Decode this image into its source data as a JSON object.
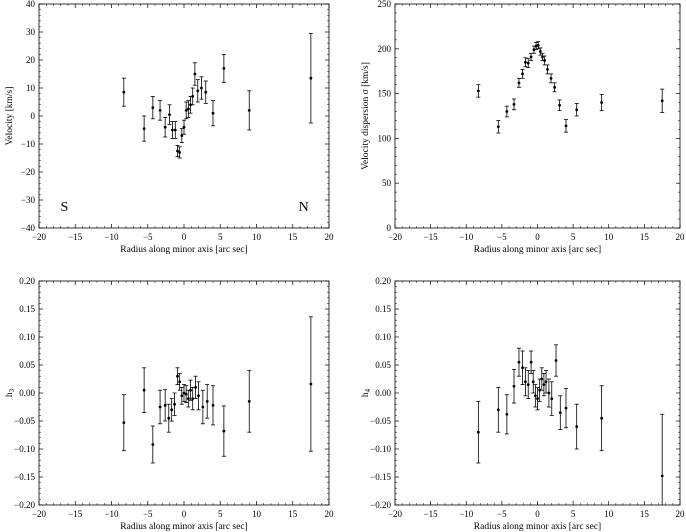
{
  "chart_data": [
    {
      "type": "scatter",
      "title": "",
      "xlabel": "Radius along minor axis [arc sec]",
      "ylabel": "Velocity [km/s]",
      "xlim": [
        -20,
        20
      ],
      "ylim": [
        -40,
        40
      ],
      "xticks": [
        -20,
        -15,
        -10,
        -5,
        0,
        5,
        10,
        15,
        20
      ],
      "yticks": [
        -40,
        -30,
        -20,
        -10,
        0,
        10,
        20,
        30,
        40
      ],
      "error_bars": true,
      "annotations": [
        "S",
        "N"
      ],
      "points": [
        {
          "x": -8.3,
          "y": 8.5,
          "err": 5
        },
        {
          "x": -5.5,
          "y": -4.5,
          "err": 4.5
        },
        {
          "x": -4.3,
          "y": 3,
          "err": 4
        },
        {
          "x": -3.3,
          "y": 2,
          "err": 3.5
        },
        {
          "x": -2.6,
          "y": -4,
          "err": 3.5
        },
        {
          "x": -2.0,
          "y": 0.5,
          "err": 3.5
        },
        {
          "x": -1.6,
          "y": -5,
          "err": 3
        },
        {
          "x": -1.2,
          "y": -5,
          "err": 3
        },
        {
          "x": -0.9,
          "y": -12.5,
          "err": 2
        },
        {
          "x": -0.6,
          "y": -13,
          "err": 2
        },
        {
          "x": -0.3,
          "y": -7,
          "err": 2.5
        },
        {
          "x": 0.0,
          "y": -4,
          "err": 2.5
        },
        {
          "x": 0.3,
          "y": 2,
          "err": 3
        },
        {
          "x": 0.6,
          "y": 2.5,
          "err": 3
        },
        {
          "x": 0.9,
          "y": 4,
          "err": 3
        },
        {
          "x": 1.2,
          "y": 7,
          "err": 3
        },
        {
          "x": 1.5,
          "y": 15,
          "err": 4
        },
        {
          "x": 1.9,
          "y": 9,
          "err": 4
        },
        {
          "x": 2.4,
          "y": 10,
          "err": 4
        },
        {
          "x": 3.0,
          "y": 8.5,
          "err": 4
        },
        {
          "x": 4.0,
          "y": 1,
          "err": 4.5
        },
        {
          "x": 5.5,
          "y": 17,
          "err": 5
        },
        {
          "x": 9.0,
          "y": 2,
          "err": 7
        },
        {
          "x": 17.5,
          "y": 13.5,
          "err": 16
        }
      ]
    },
    {
      "type": "scatter",
      "title": "",
      "xlabel": "Radius along minor axis [arc sec]",
      "ylabel": "Velocity dispersion σ [km/s]",
      "xlim": [
        -20,
        20
      ],
      "ylim": [
        0,
        250
      ],
      "xticks": [
        -20,
        -15,
        -10,
        -5,
        0,
        5,
        10,
        15,
        20
      ],
      "yticks": [
        0,
        50,
        100,
        150,
        200,
        250
      ],
      "error_bars": true,
      "points": [
        {
          "x": -8.3,
          "y": 153,
          "err": 7
        },
        {
          "x": -5.5,
          "y": 113,
          "err": 7
        },
        {
          "x": -4.3,
          "y": 130,
          "err": 6
        },
        {
          "x": -3.3,
          "y": 138,
          "err": 6
        },
        {
          "x": -2.6,
          "y": 162,
          "err": 5
        },
        {
          "x": -2.1,
          "y": 172,
          "err": 5
        },
        {
          "x": -1.7,
          "y": 185,
          "err": 5
        },
        {
          "x": -1.3,
          "y": 184,
          "err": 5
        },
        {
          "x": -0.9,
          "y": 191,
          "err": 4
        },
        {
          "x": -0.5,
          "y": 199,
          "err": 4
        },
        {
          "x": -0.2,
          "y": 203,
          "err": 4
        },
        {
          "x": 0.1,
          "y": 204,
          "err": 4
        },
        {
          "x": 0.4,
          "y": 197,
          "err": 4
        },
        {
          "x": 0.7,
          "y": 191,
          "err": 4
        },
        {
          "x": 1.0,
          "y": 187,
          "err": 5
        },
        {
          "x": 1.4,
          "y": 177,
          "err": 5
        },
        {
          "x": 1.9,
          "y": 167,
          "err": 5
        },
        {
          "x": 2.4,
          "y": 157,
          "err": 5
        },
        {
          "x": 3.1,
          "y": 137,
          "err": 6
        },
        {
          "x": 4.0,
          "y": 114,
          "err": 7
        },
        {
          "x": 5.5,
          "y": 132,
          "err": 7
        },
        {
          "x": 9.0,
          "y": 140,
          "err": 9
        },
        {
          "x": 17.5,
          "y": 142,
          "err": 13
        }
      ]
    },
    {
      "type": "scatter",
      "title": "",
      "xlabel": "Radius along minor axis [arc sec]",
      "ylabel": "h3",
      "xlim": [
        -20,
        20
      ],
      "ylim": [
        -0.2,
        0.2
      ],
      "xticks": [
        -20,
        -15,
        -10,
        -5,
        0,
        5,
        10,
        15,
        20
      ],
      "yticks": [
        -0.2,
        -0.15,
        -0.1,
        -0.05,
        0.0,
        0.05,
        0.1,
        0.15,
        0.2
      ],
      "error_bars": true,
      "points": [
        {
          "x": -8.3,
          "y": -0.053,
          "err": 0.05
        },
        {
          "x": -5.5,
          "y": 0.005,
          "err": 0.04
        },
        {
          "x": -4.3,
          "y": -0.092,
          "err": 0.033
        },
        {
          "x": -3.3,
          "y": -0.025,
          "err": 0.03
        },
        {
          "x": -2.6,
          "y": -0.022,
          "err": 0.028
        },
        {
          "x": -2.1,
          "y": -0.045,
          "err": 0.025
        },
        {
          "x": -1.7,
          "y": -0.03,
          "err": 0.02
        },
        {
          "x": -1.3,
          "y": -0.02,
          "err": 0.02
        },
        {
          "x": -0.9,
          "y": 0.03,
          "err": 0.015
        },
        {
          "x": -0.6,
          "y": 0.02,
          "err": 0.015
        },
        {
          "x": -0.3,
          "y": -0.005,
          "err": 0.015
        },
        {
          "x": 0.0,
          "y": 0.0,
          "err": 0.015
        },
        {
          "x": 0.3,
          "y": -0.002,
          "err": 0.015
        },
        {
          "x": 0.6,
          "y": -0.01,
          "err": 0.015
        },
        {
          "x": 0.9,
          "y": 0.005,
          "err": 0.018
        },
        {
          "x": 1.2,
          "y": -0.01,
          "err": 0.02
        },
        {
          "x": 1.6,
          "y": 0.01,
          "err": 0.02
        },
        {
          "x": 2.0,
          "y": -0.005,
          "err": 0.025
        },
        {
          "x": 2.6,
          "y": -0.025,
          "err": 0.03
        },
        {
          "x": 3.2,
          "y": -0.015,
          "err": 0.03
        },
        {
          "x": 4.0,
          "y": -0.022,
          "err": 0.035
        },
        {
          "x": 5.5,
          "y": -0.068,
          "err": 0.045
        },
        {
          "x": 9.0,
          "y": -0.015,
          "err": 0.055
        },
        {
          "x": 17.5,
          "y": 0.016,
          "err": 0.12
        }
      ]
    },
    {
      "type": "scatter",
      "title": "",
      "xlabel": "Radius along minor axis [arc sec]",
      "ylabel": "h4",
      "xlim": [
        -20,
        20
      ],
      "ylim": [
        -0.2,
        0.2
      ],
      "xticks": [
        -20,
        -15,
        -10,
        -5,
        0,
        5,
        10,
        15,
        20
      ],
      "yticks": [
        -0.2,
        -0.15,
        -0.1,
        -0.05,
        0.0,
        0.05,
        0.1,
        0.15,
        0.2
      ],
      "error_bars": true,
      "points": [
        {
          "x": -8.3,
          "y": -0.07,
          "err": 0.055
        },
        {
          "x": -5.5,
          "y": -0.03,
          "err": 0.04
        },
        {
          "x": -4.3,
          "y": -0.038,
          "err": 0.035
        },
        {
          "x": -3.3,
          "y": 0.012,
          "err": 0.03
        },
        {
          "x": -2.6,
          "y": 0.055,
          "err": 0.025
        },
        {
          "x": -2.1,
          "y": 0.045,
          "err": 0.03
        },
        {
          "x": -1.7,
          "y": 0.02,
          "err": 0.025
        },
        {
          "x": -1.3,
          "y": 0.015,
          "err": 0.025
        },
        {
          "x": -0.9,
          "y": 0.055,
          "err": 0.02
        },
        {
          "x": -0.6,
          "y": 0.02,
          "err": 0.02
        },
        {
          "x": -0.3,
          "y": -0.005,
          "err": 0.02
        },
        {
          "x": 0.0,
          "y": -0.01,
          "err": 0.02
        },
        {
          "x": 0.3,
          "y": 0.005,
          "err": 0.02
        },
        {
          "x": 0.6,
          "y": 0.025,
          "err": 0.02
        },
        {
          "x": 0.9,
          "y": 0.015,
          "err": 0.02
        },
        {
          "x": 1.2,
          "y": 0.02,
          "err": 0.02
        },
        {
          "x": 1.6,
          "y": 0.0,
          "err": 0.025
        },
        {
          "x": 2.0,
          "y": -0.01,
          "err": 0.03
        },
        {
          "x": 2.6,
          "y": 0.058,
          "err": 0.028
        },
        {
          "x": 3.2,
          "y": -0.035,
          "err": 0.03
        },
        {
          "x": 4.0,
          "y": -0.027,
          "err": 0.035
        },
        {
          "x": 5.5,
          "y": -0.06,
          "err": 0.04
        },
        {
          "x": 9.0,
          "y": -0.045,
          "err": 0.058
        },
        {
          "x": 17.5,
          "y": -0.148,
          "err": 0.11
        }
      ]
    }
  ]
}
